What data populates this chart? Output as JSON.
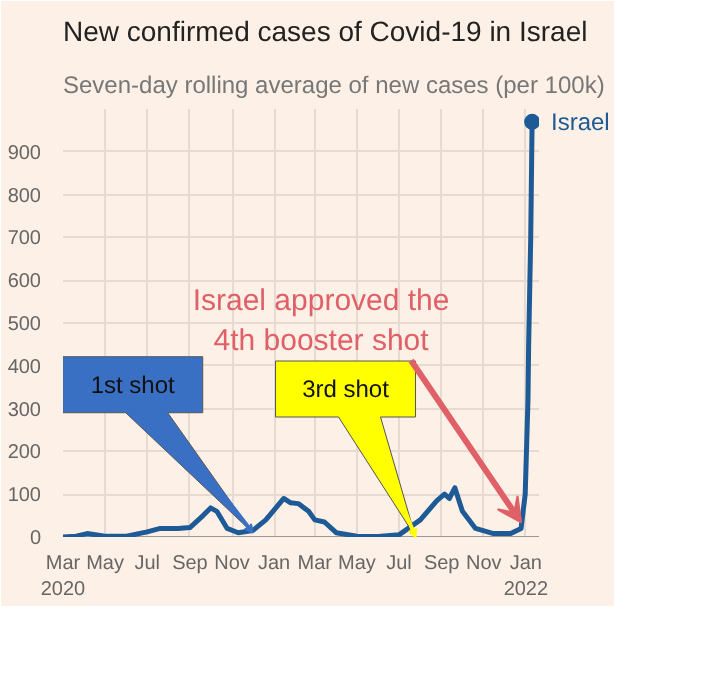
{
  "chart_data": {
    "type": "line",
    "title": "New confirmed cases of Covid-19 in Israel",
    "subtitle": "Seven-day rolling average of new cases (per 100k)",
    "x": [
      "2020-03-01",
      "2020-03-20",
      "2020-04-05",
      "2020-05-01",
      "2020-06-01",
      "2020-07-01",
      "2020-07-20",
      "2020-08-15",
      "2020-09-01",
      "2020-09-20",
      "2020-10-01",
      "2020-10-10",
      "2020-10-25",
      "2020-11-10",
      "2020-12-01",
      "2020-12-20",
      "2021-01-15",
      "2021-01-25",
      "2021-02-05",
      "2021-02-20",
      "2021-03-01",
      "2021-03-15",
      "2021-04-01",
      "2021-05-01",
      "2021-06-01",
      "2021-07-01",
      "2021-08-01",
      "2021-08-25",
      "2021-09-05",
      "2021-09-12",
      "2021-09-20",
      "2021-10-01",
      "2021-10-20",
      "2021-11-15",
      "2021-12-10",
      "2021-12-25",
      "2021-12-31",
      "2022-01-04",
      "2022-01-05",
      "2022-01-08",
      "2022-01-10"
    ],
    "series": [
      {
        "name": "Israel",
        "color": "#1d5a96",
        "values": [
          0,
          2,
          8,
          2,
          2,
          12,
          20,
          20,
          22,
          50,
          68,
          60,
          20,
          10,
          15,
          40,
          90,
          80,
          78,
          60,
          40,
          35,
          10,
          2,
          1,
          5,
          40,
          85,
          100,
          90,
          115,
          60,
          20,
          8,
          8,
          20,
          100,
          320,
          450,
          700,
          970
        ]
      }
    ],
    "xlim": [
      "2020-03-01",
      "2022-01-20"
    ],
    "ylim": [
      0,
      1000
    ],
    "xticks": [
      {
        "value": "2020-03-01",
        "label": "Mar\n2020"
      },
      {
        "value": "2020-05-01",
        "label": "May"
      },
      {
        "value": "2020-07-01",
        "label": "Jul"
      },
      {
        "value": "2020-09-01",
        "label": "Sep"
      },
      {
        "value": "2020-11-01",
        "label": "Nov"
      },
      {
        "value": "2021-01-01",
        "label": "Jan"
      },
      {
        "value": "2021-03-01",
        "label": "Mar"
      },
      {
        "value": "2021-05-01",
        "label": "May"
      },
      {
        "value": "2021-07-01",
        "label": "Jul"
      },
      {
        "value": "2021-09-01",
        "label": "Sep"
      },
      {
        "value": "2021-11-01",
        "label": "Nov"
      },
      {
        "value": "2022-01-01",
        "label": "Jan\n2022"
      }
    ],
    "yticks": [
      0,
      100,
      200,
      300,
      400,
      500,
      600,
      700,
      800,
      900
    ],
    "grid": true,
    "annotations": [
      {
        "text": "1st shot",
        "x": "2020-12-01",
        "y": 10
      },
      {
        "text": "3rd shot",
        "x": "2021-07-25",
        "y": 0
      },
      {
        "text": "Israel approved the\n4th booster shot",
        "x": "2021-12-25",
        "y": 20
      }
    ]
  }
}
